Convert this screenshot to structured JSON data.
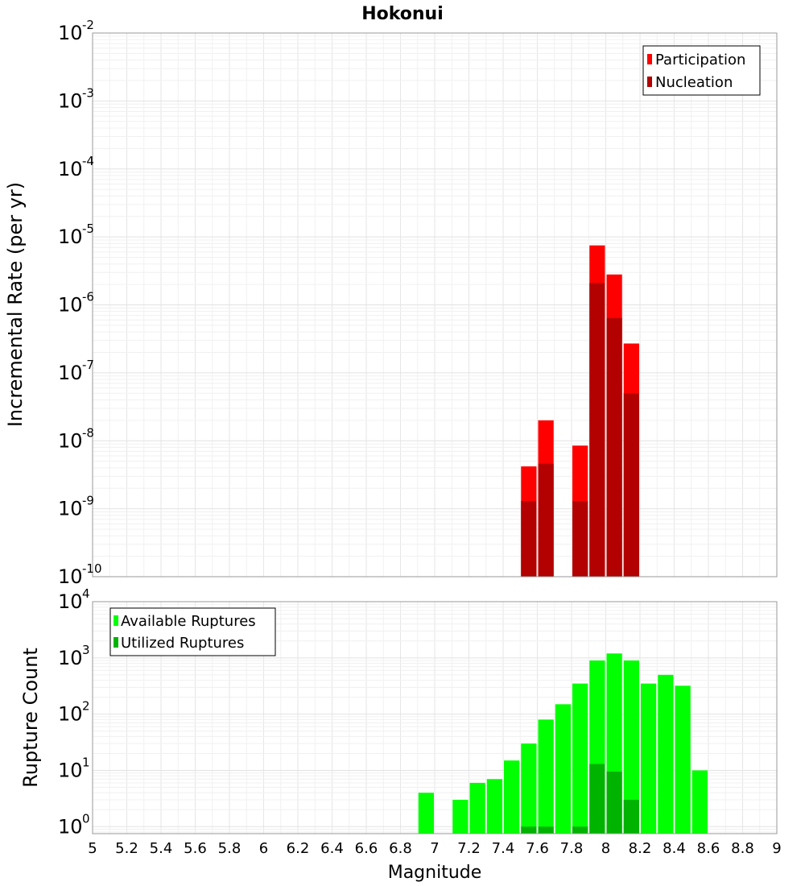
{
  "chart_data": [
    {
      "type": "bar",
      "title": "Hokonui",
      "xlabel": "",
      "ylabel": "Incremental Rate (per yr)",
      "yscale": "log",
      "ylim": [
        1e-10,
        0.01
      ],
      "xlim": [
        5,
        9
      ],
      "grid": true,
      "legend_position": "top-right",
      "ytick_labels": [
        {
          "base": "10",
          "exp": "-10",
          "value": 1e-10
        },
        {
          "base": "10",
          "exp": "-9",
          "value": 1e-09
        },
        {
          "base": "10",
          "exp": "-8",
          "value": 1e-08
        },
        {
          "base": "10",
          "exp": "-7",
          "value": 1e-07
        },
        {
          "base": "10",
          "exp": "-6",
          "value": 1e-06
        },
        {
          "base": "10",
          "exp": "-5",
          "value": 1e-05
        },
        {
          "base": "10",
          "exp": "-4",
          "value": 0.0001
        },
        {
          "base": "10",
          "exp": "-3",
          "value": 0.001
        },
        {
          "base": "10",
          "exp": "-2",
          "value": 0.01
        }
      ],
      "series": [
        {
          "name": "Participation",
          "color": "#ff0000",
          "x": [
            7.55,
            7.65,
            7.85,
            7.95,
            8.05,
            8.15
          ],
          "values": [
            4.2e-09,
            2e-08,
            8.5e-09,
            7.5e-06,
            2.8e-06,
            2.7e-07
          ]
        },
        {
          "name": "Nucleation",
          "color": "#b30000",
          "x": [
            7.55,
            7.65,
            7.85,
            7.95,
            8.05,
            8.15
          ],
          "values": [
            1.3e-09,
            4.6e-09,
            1.3e-09,
            2.1e-06,
            6.4e-07,
            5e-08
          ]
        }
      ]
    },
    {
      "type": "bar",
      "xlabel": "Magnitude",
      "ylabel": "Rupture Count",
      "yscale": "log",
      "ylim": [
        0.75,
        10000
      ],
      "xlim": [
        5,
        9
      ],
      "grid": true,
      "legend_position": "top-left",
      "xtick_labels": [
        "5",
        "5.2",
        "5.4",
        "5.6",
        "5.8",
        "6",
        "6.2",
        "6.4",
        "6.6",
        "6.8",
        "7",
        "7.2",
        "7.4",
        "7.6",
        "7.8",
        "8",
        "8.2",
        "8.4",
        "8.6",
        "8.8",
        "9"
      ],
      "ytick_labels": [
        {
          "base": "10",
          "exp": "0",
          "value": 1
        },
        {
          "base": "10",
          "exp": "1",
          "value": 10
        },
        {
          "base": "10",
          "exp": "2",
          "value": 100
        },
        {
          "base": "10",
          "exp": "3",
          "value": 1000
        },
        {
          "base": "10",
          "exp": "4",
          "value": 10000
        }
      ],
      "series": [
        {
          "name": "Available Ruptures",
          "color": "#00ff00",
          "x": [
            6.95,
            7.15,
            7.25,
            7.35,
            7.45,
            7.55,
            7.65,
            7.75,
            7.85,
            7.95,
            8.05,
            8.15,
            8.25,
            8.35,
            8.45,
            8.55
          ],
          "values": [
            4,
            3,
            6,
            7,
            15,
            30,
            80,
            150,
            350,
            900,
            1200,
            900,
            350,
            500,
            320,
            10
          ]
        },
        {
          "name": "Utilized Ruptures",
          "color": "#00b300",
          "x": [
            7.55,
            7.65,
            7.85,
            7.95,
            8.05,
            8.15
          ],
          "values": [
            1,
            1,
            1,
            13,
            9.5,
            3
          ]
        }
      ]
    }
  ]
}
